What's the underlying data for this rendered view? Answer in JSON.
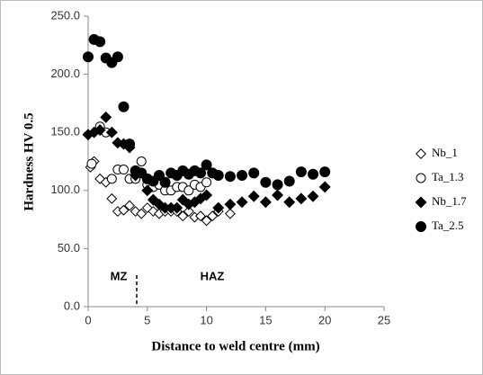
{
  "chart_data": {
    "type": "scatter",
    "xlabel": "Distance to weld centre (mm)",
    "ylabel": "Hardness HV 0.5",
    "xlim": [
      0,
      25
    ],
    "xticks": [
      0,
      5,
      10,
      15,
      20,
      25
    ],
    "ylim": [
      0,
      250
    ],
    "yticks": [
      {
        "value": 0,
        "label": "0.0"
      },
      {
        "value": 50,
        "label": "50.0"
      },
      {
        "value": 100,
        "label": "100.0"
      },
      {
        "value": 150,
        "label": "150.0"
      },
      {
        "value": 200,
        "label": "200.0"
      },
      {
        "value": 250,
        "label": "250.0"
      }
    ],
    "annotations": [
      "MZ",
      "HAZ"
    ],
    "legend": "right",
    "series": [
      {
        "name": "Nb_1",
        "color": "#000000",
        "marker": "diamond",
        "filled": false,
        "x": [
          0.2,
          0.5,
          1,
          1.5,
          2,
          2.5,
          3,
          3.5,
          4,
          4.5,
          5,
          5.5,
          6,
          6.5,
          7,
          7.5,
          8,
          8.5,
          9,
          9.5,
          10,
          10.5,
          11,
          12
        ],
        "values": [
          120,
          125,
          110,
          107,
          93,
          82,
          83,
          87,
          82,
          80,
          85,
          82,
          80,
          82,
          82,
          82,
          78,
          82,
          77,
          78,
          74,
          78,
          82,
          80
        ]
      },
      {
        "name": "Ta_1.3",
        "color": "#000000",
        "marker": "circle",
        "filled": false,
        "x": [
          0.3,
          1,
          1.5,
          2,
          2.5,
          3,
          3.5,
          4,
          4.5,
          5,
          5.5,
          6,
          6.5,
          7,
          7.5,
          8,
          8.5,
          9,
          9.5,
          10
        ],
        "values": [
          123,
          155,
          150,
          110,
          118,
          118,
          110,
          110,
          125,
          105,
          103,
          105,
          100,
          100,
          103,
          103,
          100,
          105,
          103,
          107
        ]
      },
      {
        "name": "Nb_1.7",
        "color": "#000000",
        "marker": "diamond",
        "filled": true,
        "x": [
          0,
          0.5,
          1,
          1.5,
          2,
          2.5,
          3,
          3.5,
          4,
          5,
          5.5,
          6,
          6.5,
          7,
          7.5,
          8,
          8.5,
          9,
          9.5,
          10,
          11,
          12,
          13,
          14,
          15,
          16,
          17,
          18,
          19,
          20
        ],
        "values": [
          148,
          150,
          152,
          163,
          150,
          141,
          140,
          137,
          113,
          100,
          92,
          88,
          85,
          85,
          85,
          92,
          88,
          90,
          93,
          96,
          85,
          88,
          90,
          95,
          90,
          96,
          90,
          93,
          95,
          103
        ]
      },
      {
        "name": "Ta_2.5",
        "color": "#000000",
        "marker": "circle",
        "filled": true,
        "x": [
          0,
          0.5,
          1,
          1.5,
          2,
          2.5,
          3,
          3.5,
          4,
          4.5,
          5,
          5.5,
          6,
          6.5,
          7,
          7.5,
          8,
          8.5,
          9,
          9.5,
          10,
          10.5,
          11,
          12,
          13,
          14,
          15,
          16,
          17,
          18,
          19,
          20
        ],
        "values": [
          215,
          230,
          228,
          214,
          210,
          215,
          172,
          140,
          117,
          115,
          110,
          108,
          113,
          107,
          115,
          113,
          117,
          114,
          117,
          115,
          122,
          115,
          113,
          112,
          113,
          115,
          107,
          105,
          108,
          116,
          114,
          116
        ]
      }
    ]
  }
}
